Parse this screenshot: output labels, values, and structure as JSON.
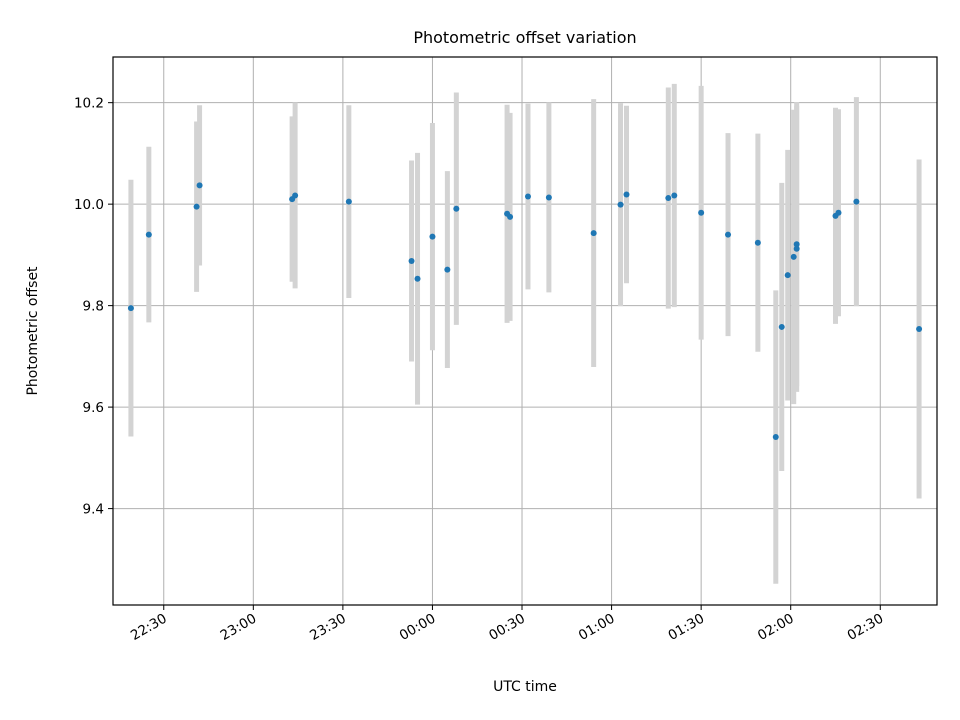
{
  "chart_data": {
    "type": "scatter",
    "title": "Photometric offset variation",
    "xlabel": "UTC time",
    "ylabel": "Photometric offset",
    "x_unit": "minutes after 22:00 UTC (ticks wrap past midnight)",
    "xlim": [
      "22:13",
      "02:49"
    ],
    "ylim": [
      9.21,
      10.29
    ],
    "xticks": [
      "22:30",
      "23:00",
      "23:30",
      "00:00",
      "00:30",
      "01:00",
      "01:30",
      "02:00",
      "02:30"
    ],
    "yticks": [
      9.4,
      9.6,
      9.8,
      10.0,
      10.2
    ],
    "grid": true,
    "marker_color": "#1f77b4",
    "errorbar_color": "#d3d3d3",
    "points": [
      {
        "t": "22:19",
        "y": 9.795,
        "err": 0.253
      },
      {
        "t": "22:25",
        "y": 9.94,
        "err": 0.173
      },
      {
        "t": "22:41",
        "y": 9.995,
        "err": 0.168
      },
      {
        "t": "22:42",
        "y": 10.037,
        "err": 0.158
      },
      {
        "t": "23:13",
        "y": 10.01,
        "err": 0.163
      },
      {
        "t": "23:14",
        "y": 10.017,
        "err": 0.183
      },
      {
        "t": "23:32",
        "y": 10.005,
        "err": 0.19
      },
      {
        "t": "23:53",
        "y": 9.888,
        "err": 0.198
      },
      {
        "t": "23:55",
        "y": 9.853,
        "err": 0.248
      },
      {
        "t": "00:00",
        "y": 9.936,
        "err": 0.224
      },
      {
        "t": "00:05",
        "y": 9.871,
        "err": 0.194
      },
      {
        "t": "00:08",
        "y": 9.991,
        "err": 0.229
      },
      {
        "t": "00:25",
        "y": 9.981,
        "err": 0.215
      },
      {
        "t": "00:26",
        "y": 9.975,
        "err": 0.205
      },
      {
        "t": "00:32",
        "y": 10.015,
        "err": 0.183
      },
      {
        "t": "00:39",
        "y": 10.013,
        "err": 0.187
      },
      {
        "t": "00:54",
        "y": 9.943,
        "err": 0.264
      },
      {
        "t": "01:03",
        "y": 9.999,
        "err": 0.2
      },
      {
        "t": "01:05",
        "y": 10.019,
        "err": 0.175
      },
      {
        "t": "01:19",
        "y": 10.012,
        "err": 0.218
      },
      {
        "t": "01:21",
        "y": 10.017,
        "err": 0.22
      },
      {
        "t": "01:30",
        "y": 9.983,
        "err": 0.25
      },
      {
        "t": "01:39",
        "y": 9.94,
        "err": 0.2
      },
      {
        "t": "01:49",
        "y": 9.924,
        "err": 0.215
      },
      {
        "t": "01:55",
        "y": 9.541,
        "err": 0.289
      },
      {
        "t": "01:57",
        "y": 9.758,
        "err": 0.284
      },
      {
        "t": "01:59",
        "y": 9.86,
        "err": 0.247
      },
      {
        "t": "02:01",
        "y": 9.896,
        "err": 0.29
      },
      {
        "t": "02:02",
        "y": 9.921,
        "err": 0.28
      },
      {
        "t": "02:02",
        "y": 9.912,
        "err": 0.282
      },
      {
        "t": "02:15",
        "y": 9.977,
        "err": 0.213
      },
      {
        "t": "02:16",
        "y": 9.983,
        "err": 0.204
      },
      {
        "t": "02:22",
        "y": 10.005,
        "err": 0.206
      },
      {
        "t": "02:43",
        "y": 9.754,
        "err": 0.334
      }
    ]
  }
}
